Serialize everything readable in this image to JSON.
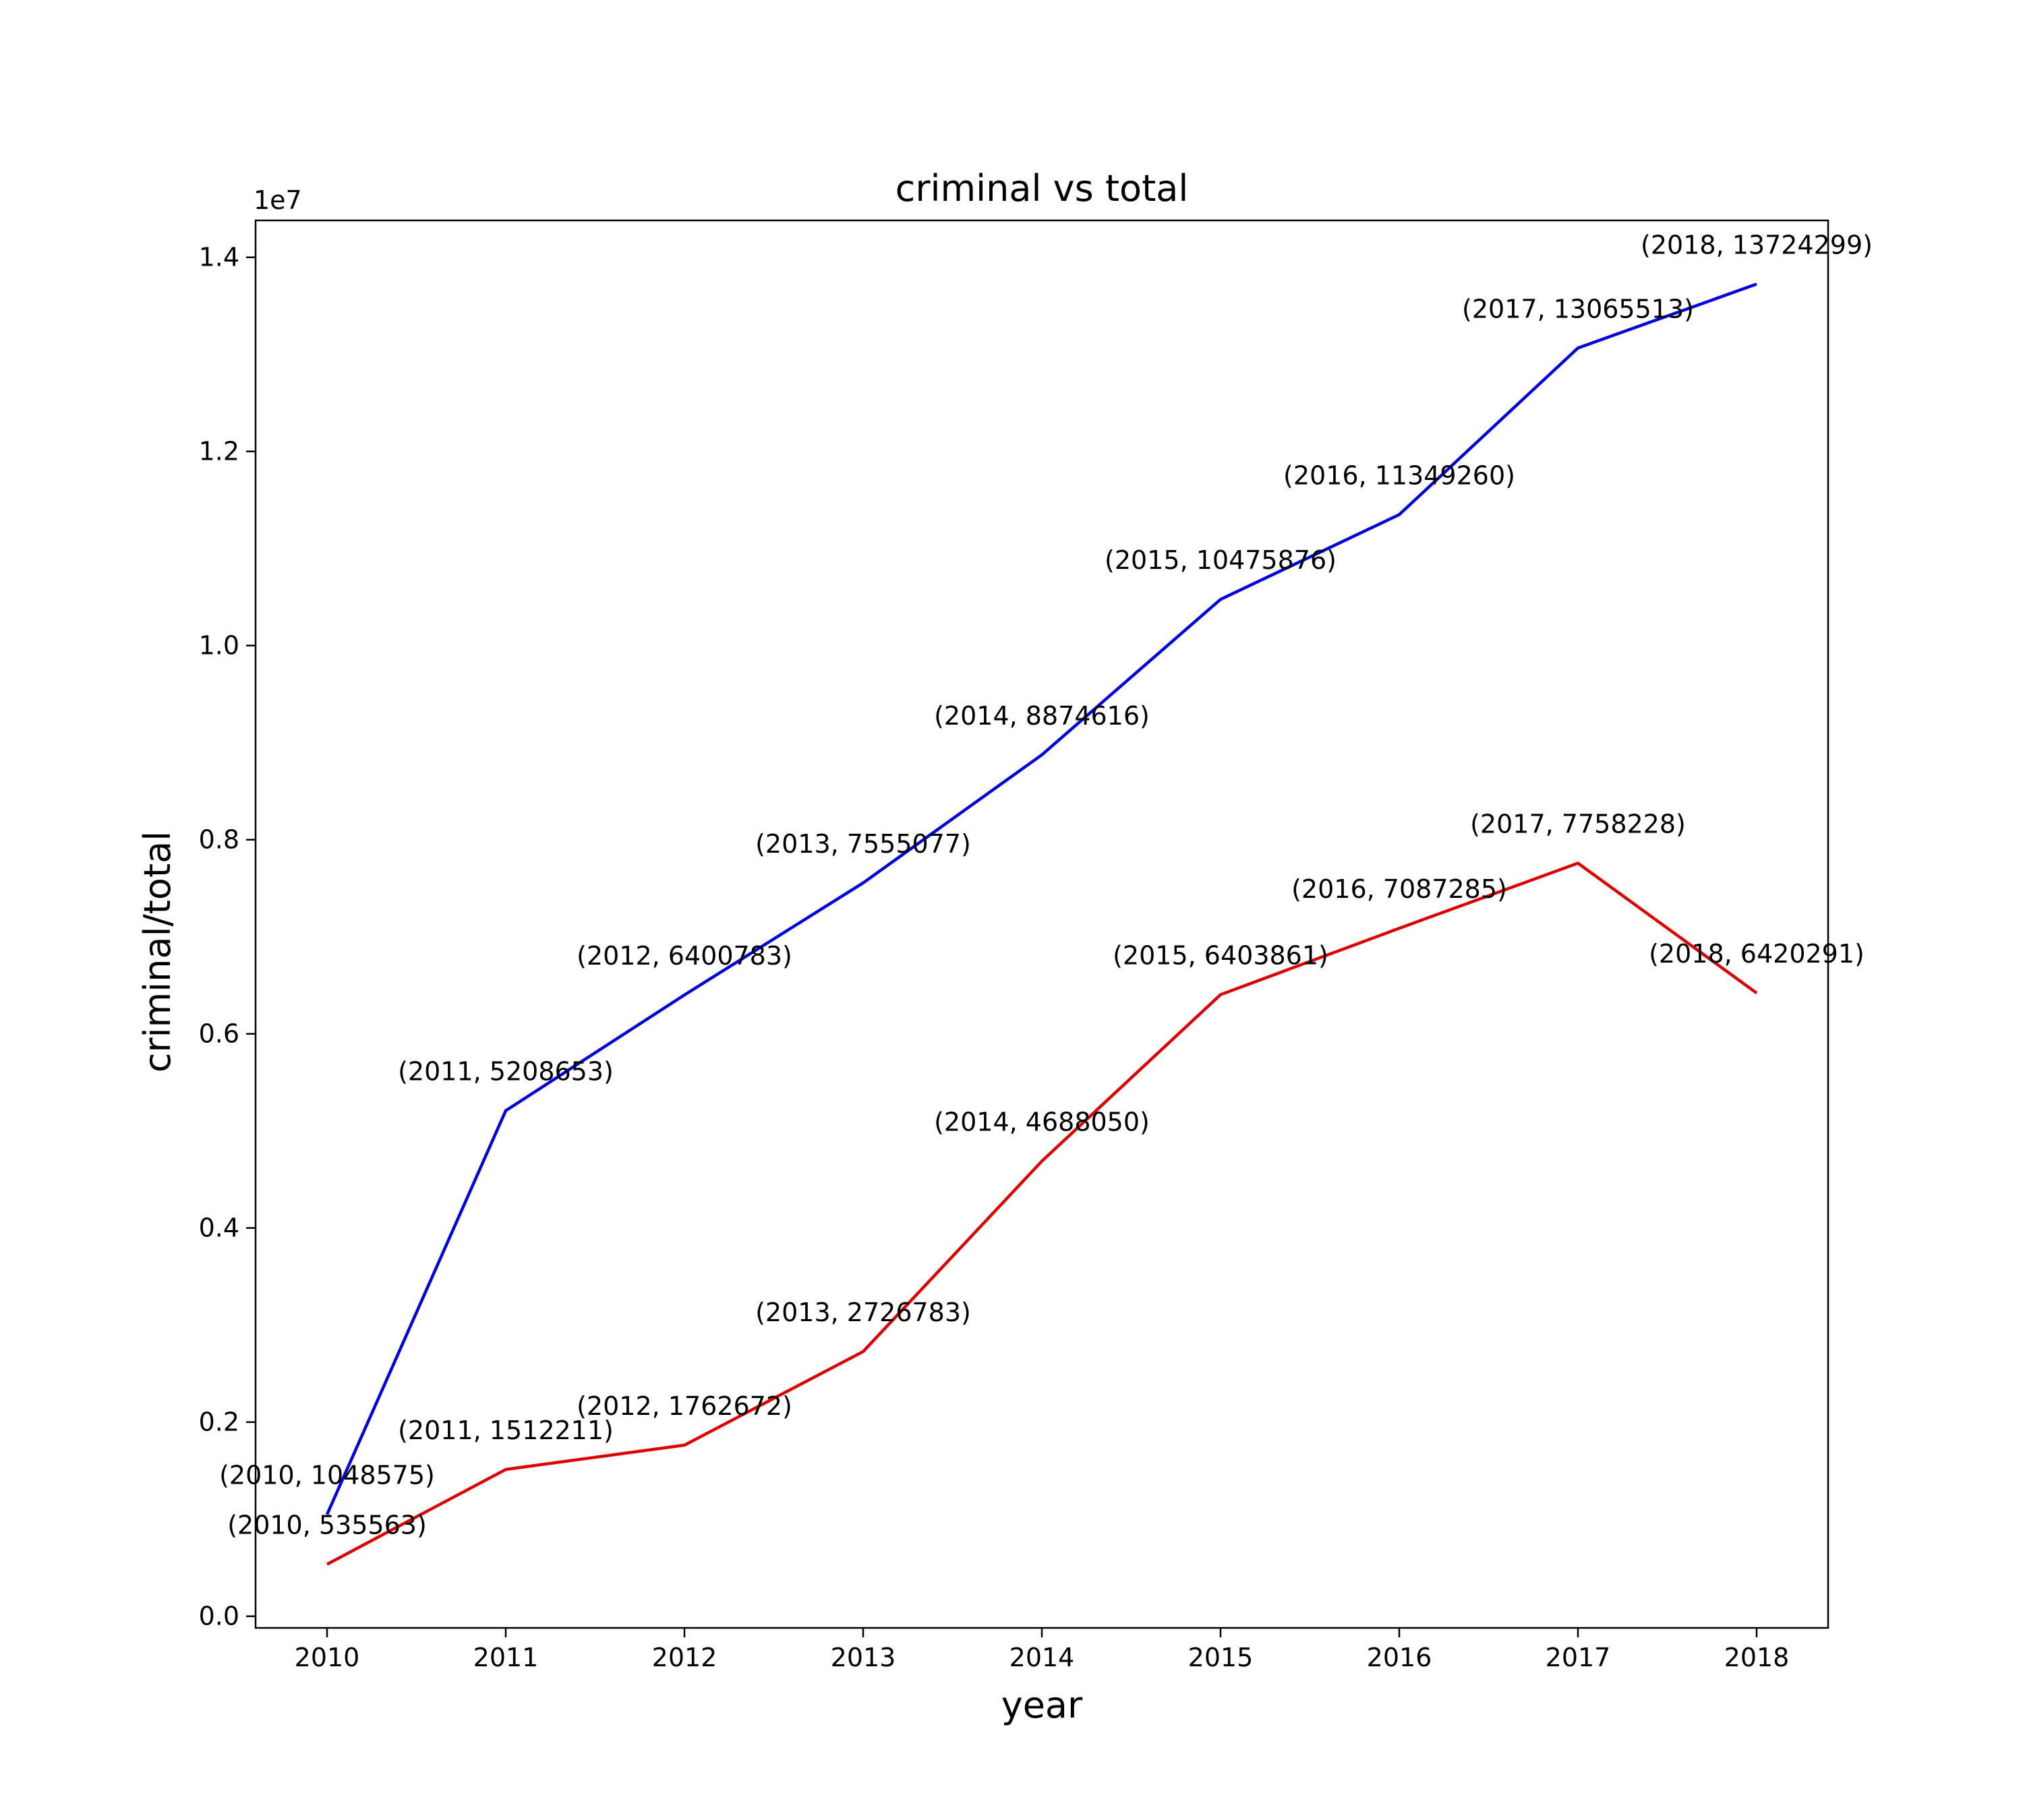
{
  "chart_data": {
    "type": "line",
    "title": "criminal vs total",
    "xlabel": "year",
    "ylabel": "criminal/total",
    "y_offset_text": "1e7",
    "y_scale_factor": 10000000,
    "x": [
      2010,
      2011,
      2012,
      2013,
      2014,
      2015,
      2016,
      2017,
      2018
    ],
    "x_ticks": [
      "2010",
      "2011",
      "2012",
      "2013",
      "2014",
      "2015",
      "2016",
      "2017",
      "2018"
    ],
    "y_ticks": [
      "0.0",
      "0.2",
      "0.4",
      "0.6",
      "0.8",
      "1.0",
      "1.2",
      "1.4"
    ],
    "y_tick_values": [
      0,
      2000000,
      4000000,
      6000000,
      8000000,
      10000000,
      12000000,
      14000000
    ],
    "xlim": [
      2009.6,
      2018.4
    ],
    "ylim": [
      -120000,
      14380000
    ],
    "grid": false,
    "legend": "none",
    "series": [
      {
        "color": "#0000dd",
        "values": [
          1048575,
          5208653,
          6400783,
          7555077,
          8874616,
          10475876,
          11349260,
          13065513,
          13724299
        ],
        "labels": [
          "(2010, 1048575)",
          "(2011, 5208653)",
          "(2012, 6400783)",
          "(2013, 7555077)",
          "(2014, 8874616)",
          "(2015, 10475876)",
          "(2016, 11349260)",
          "(2017, 13065513)",
          "(2018, 13724299)"
        ]
      },
      {
        "color": "#dd0000",
        "values": [
          535563,
          1512211,
          1762672,
          2726783,
          4688050,
          6403861,
          7087285,
          7758228,
          6420291
        ],
        "labels": [
          "(2010, 535563)",
          "(2011, 1512211)",
          "(2012, 1762672)",
          "(2013, 2726783)",
          "(2014, 4688050)",
          "(2015, 6403861)",
          "(2016, 7087285)",
          "(2017, 7758228)",
          "(2018, 6420291)"
        ]
      }
    ]
  }
}
